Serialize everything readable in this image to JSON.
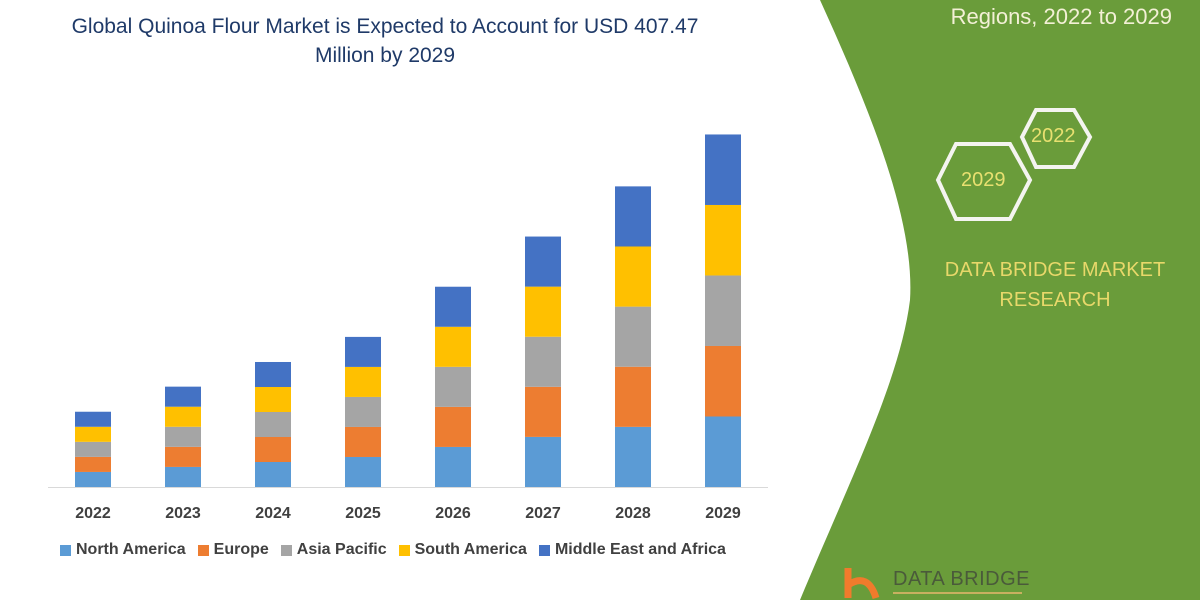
{
  "header": {
    "title": "Global Quinoa Flour Market is Expected to Account for USD 407.47 Million by 2029",
    "side_title": "Regions, 2022 to 2029"
  },
  "side_panel": {
    "hex_labels": [
      "2022",
      "2029"
    ],
    "brand": "DATA BRIDGE MARKET RESEARCH",
    "logo_text": "DATA BRIDGE",
    "panel_color": "#6a9c3a"
  },
  "chart_data": {
    "type": "bar",
    "stacked": true,
    "title": "Global Quinoa Flour Market is Expected to Account for USD 407.47 Million by 2029",
    "xlabel": "",
    "ylabel": "",
    "categories": [
      "2022",
      "2023",
      "2024",
      "2025",
      "2026",
      "2027",
      "2028",
      "2029"
    ],
    "ylim": [
      0,
      430
    ],
    "grid": false,
    "legend_position": "bottom",
    "series": [
      {
        "name": "North America",
        "color": "#5b9bd5",
        "values": [
          17.4,
          23.2,
          28.9,
          34.7,
          46.3,
          57.9,
          69.5,
          81.5
        ]
      },
      {
        "name": "Europe",
        "color": "#ed7d31",
        "values": [
          17.4,
          23.2,
          28.9,
          34.7,
          46.3,
          57.9,
          69.5,
          81.5
        ]
      },
      {
        "name": "Asia Pacific",
        "color": "#a5a5a5",
        "values": [
          17.4,
          23.2,
          28.9,
          34.7,
          46.3,
          57.9,
          69.5,
          81.5
        ]
      },
      {
        "name": "South America",
        "color": "#ffc000",
        "values": [
          17.4,
          23.2,
          28.9,
          34.7,
          46.3,
          57.9,
          69.5,
          81.5
        ]
      },
      {
        "name": "Middle East and Africa",
        "color": "#4472c4",
        "values": [
          17.4,
          23.2,
          28.9,
          34.7,
          46.3,
          57.9,
          69.5,
          81.5
        ]
      }
    ]
  }
}
